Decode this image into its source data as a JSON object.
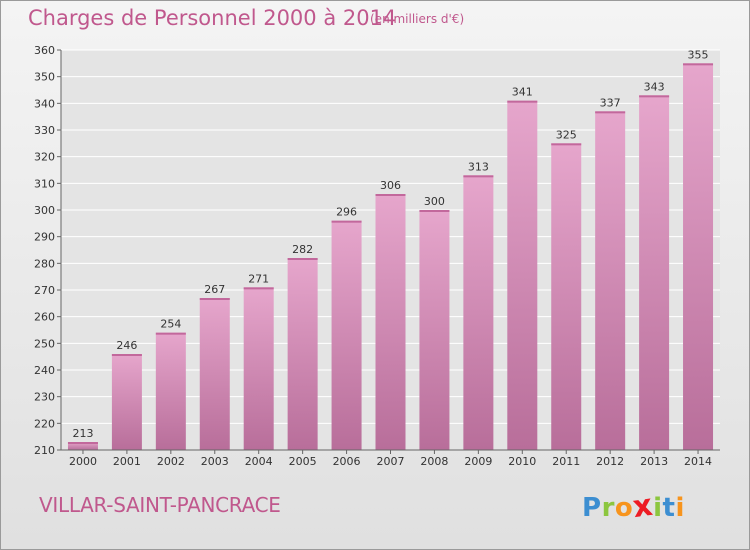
{
  "header": {
    "title": "Charges de Personnel 2000 à 2014",
    "subtitle": "(en milliers d'€)"
  },
  "footer": {
    "commune": "VILLAR-SAINT-PANCRACE",
    "logo": [
      "P",
      "r",
      "o",
      "x",
      "i",
      "t",
      "i"
    ]
  },
  "colors": {
    "title": "#c0588d",
    "bar_top": "#e6a6cc",
    "bar_bottom": "#b86e9a",
    "logo_letters": [
      "#3c8ed1",
      "#8cc63f",
      "#f7941d",
      "#ed1c24",
      "#8cc63f",
      "#3c8ed1",
      "#f7941d"
    ]
  },
  "chart_data": {
    "type": "bar",
    "title": "Charges de Personnel 2000 à 2014",
    "subtitle": "(en milliers d'€)",
    "xlabel": "",
    "ylabel": "",
    "ylim": [
      210,
      360
    ],
    "yticks": [
      210,
      220,
      230,
      240,
      250,
      260,
      270,
      280,
      290,
      300,
      310,
      320,
      330,
      340,
      350,
      360
    ],
    "grid": true,
    "categories": [
      "2000",
      "2001",
      "2002",
      "2003",
      "2004",
      "2005",
      "2006",
      "2007",
      "2008",
      "2009",
      "2010",
      "2011",
      "2012",
      "2013",
      "2014"
    ],
    "values": [
      213,
      246,
      254,
      267,
      271,
      282,
      296,
      306,
      300,
      313,
      341,
      325,
      337,
      343,
      355
    ]
  }
}
